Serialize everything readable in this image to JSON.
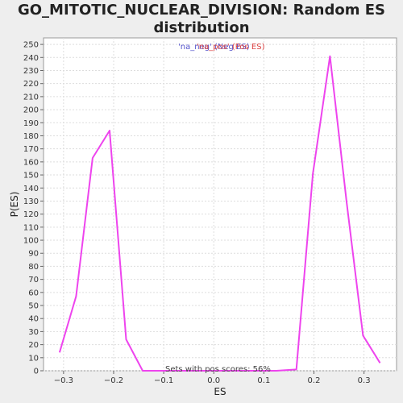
{
  "chart_data": {
    "type": "line",
    "title_line1": "GO_MITOTIC_NUCLEAR_DIVISION: Random ES",
    "title_line2": "distribution",
    "xlabel": "ES",
    "ylabel": "P(ES)",
    "xlim": [
      -0.34,
      0.365
    ],
    "ylim": [
      0,
      255
    ],
    "xticks": [
      -0.3,
      -0.2,
      -0.1,
      0.0,
      0.1,
      0.2,
      0.3
    ],
    "xtick_labels": [
      "−0.3",
      "−0.2",
      "−0.1",
      "0.0",
      "0.1",
      "0.2",
      "0.3"
    ],
    "yticks": [
      0,
      10,
      20,
      30,
      40,
      50,
      60,
      70,
      80,
      90,
      100,
      110,
      120,
      130,
      140,
      150,
      160,
      170,
      180,
      190,
      200,
      210,
      220,
      230,
      240,
      250
    ],
    "grid": true,
    "legend": [
      {
        "label": "'na_neg' (Neg ES)",
        "color": "#5555cc"
      },
      {
        "label": "'na_pos' (Pos ES)",
        "color": "#dd4444"
      }
    ],
    "annotation": "Sets with pos scores: 56%",
    "series": [
      {
        "color": "#ee44ee",
        "x": [
          -0.308,
          -0.275,
          -0.242,
          -0.208,
          -0.175,
          -0.142,
          -0.108,
          -0.075,
          -0.042,
          -0.008,
          0.025,
          0.058,
          0.092,
          0.125,
          0.165,
          0.198,
          0.232,
          0.265,
          0.298,
          0.332
        ],
        "y": [
          14,
          57,
          163,
          184,
          24,
          0,
          0,
          0,
          0,
          0,
          0,
          0,
          0,
          0,
          1,
          151,
          241,
          130,
          27,
          6
        ]
      }
    ]
  }
}
